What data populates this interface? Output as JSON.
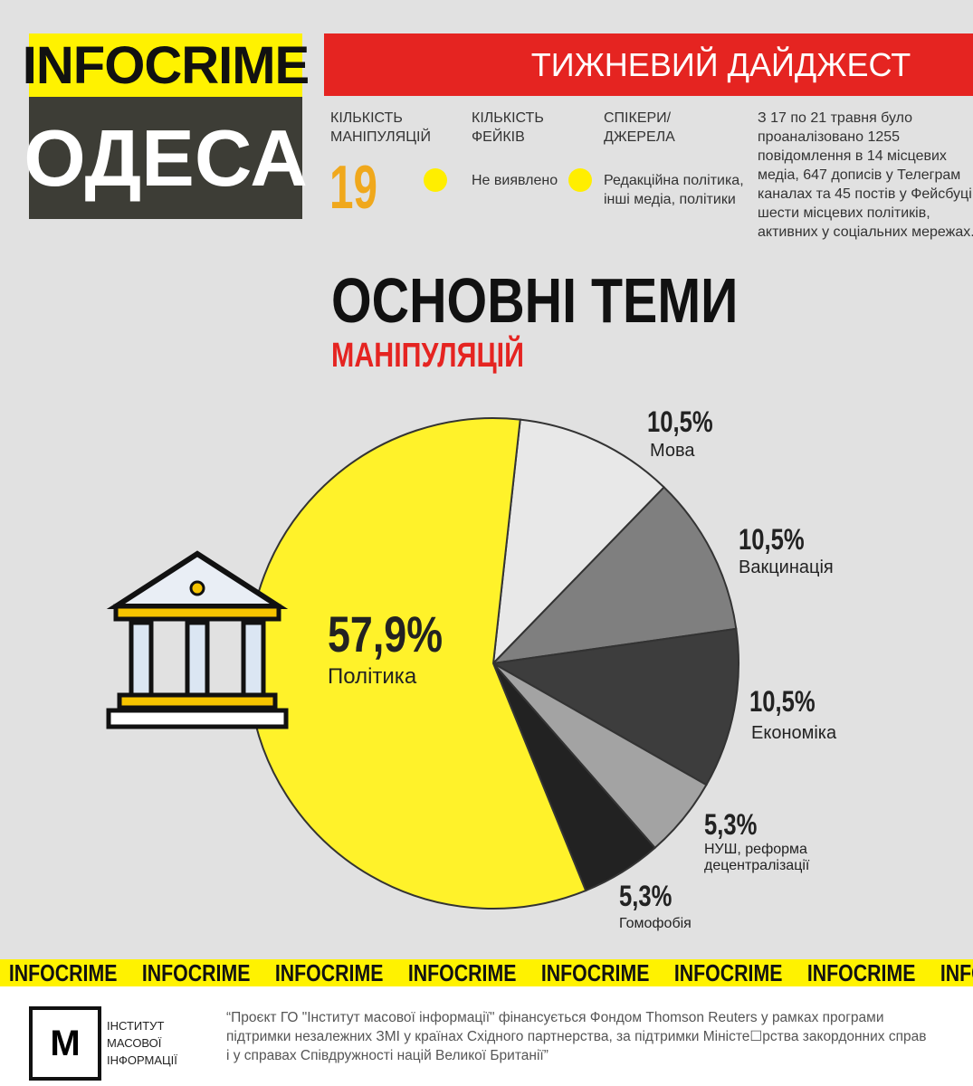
{
  "logo": {
    "top": "INFOCRIME",
    "city": "ОДЕСА"
  },
  "banner": "ТИЖНЕВИЙ ДАЙДЖЕСТ",
  "stats": {
    "manipulations_label": "КІЛЬКІСТЬ МАНІПУЛЯЦІЙ",
    "manipulations_value": "19",
    "fakes_label": "КІЛЬКІСТЬ ФЕЙКІВ",
    "fakes_value": "Не виявлено",
    "sources_label": "СПІКЕРИ/ ДЖЕРЕЛА",
    "sources_value": "Редакційна політика, інші медіа, політики",
    "summary": "З 17 по 21 травня було проаналізовано 1255 повідомлення в 14 місцевих медіа, 647 дописів у Телеграм каналах та 45 постів у Фейсбуці шести місцевих політиків, активних у соціальних мережах."
  },
  "title": "ОСНОВНІ ТЕМИ",
  "subtitle": "МАНІПУЛЯЦІЙ",
  "chart_data": {
    "type": "pie",
    "slices": [
      {
        "label": "Мова",
        "value": 10.5,
        "display": "10,5%",
        "color": "#e8e8e8"
      },
      {
        "label": "Вакцинація",
        "value": 10.5,
        "display": "10,5%",
        "color": "#7f7f7f"
      },
      {
        "label": "Економіка",
        "value": 10.5,
        "display": "10,5%",
        "color": "#3d3d3d"
      },
      {
        "label": "НУШ, реформа децентралізації",
        "value": 5.3,
        "display": "5,3%",
        "color": "#a3a3a3"
      },
      {
        "label": "Гомофобія",
        "value": 5.3,
        "display": "5,3%",
        "color": "#222222"
      },
      {
        "label": "Політика",
        "value": 57.9,
        "display": "57,9%",
        "color": "#fff22a"
      }
    ]
  },
  "strip_text": "INFOCRIME",
  "footer": {
    "org": "ІНСТИТУТ МАСОВОЇ ІНФОРМАЦІЇ",
    "note": "“Проєкт ГО \"Інститут масової інформації\" фінансується Фондом Thomson Reuters у рамках програми підтримки незалежних ЗМІ у країнах Східного партнерства, за підтримки Міністе☐рства закордонних справ і у справах Співдружності націй Великої Британії”"
  }
}
